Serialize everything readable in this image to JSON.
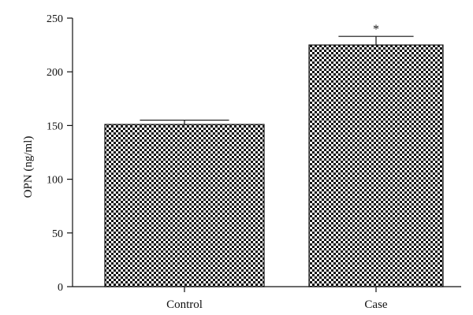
{
  "chart_data": {
    "type": "bar",
    "categories": [
      "Control",
      "Case"
    ],
    "values": [
      151,
      225
    ],
    "errors": [
      4,
      8
    ],
    "ylabel": "OPN (ng/ml)",
    "xlabel": "",
    "title": "",
    "ylim": [
      0,
      250
    ],
    "yticks": [
      0,
      50,
      100,
      150,
      200,
      250
    ],
    "annotations": [
      {
        "category": "Case",
        "text": "*"
      }
    ],
    "grid": false,
    "legend": "none",
    "bar_fill": "checkerboard",
    "colors": {
      "bar": "#111111",
      "background": "#ffffff",
      "axis": "#111111"
    }
  }
}
